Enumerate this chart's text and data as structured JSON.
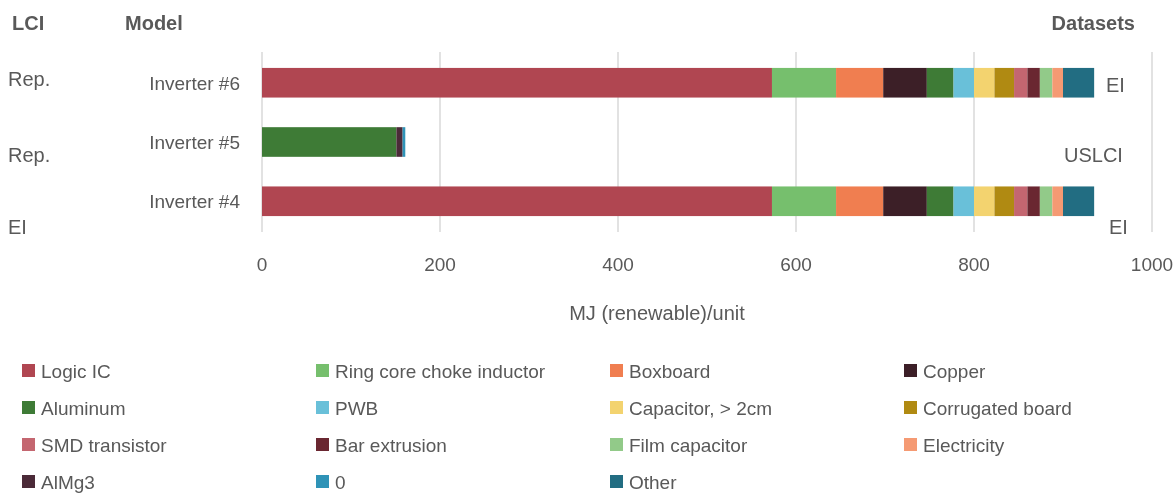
{
  "chart_data": {
    "type": "bar",
    "orientation": "horizontal",
    "stacked": true,
    "categories": [
      "Inverter #6",
      "Inverter #5",
      "Inverter #4"
    ],
    "series": [
      {
        "name": "Logic IC",
        "color": "#b04651",
        "values": [
          573,
          0,
          573
        ]
      },
      {
        "name": "Ring core choke inductor",
        "color": "#76bf6d",
        "values": [
          72,
          0,
          72
        ]
      },
      {
        "name": "Boxboard",
        "color": "#f07e50",
        "values": [
          53,
          0,
          53
        ]
      },
      {
        "name": "Copper",
        "color": "#3c1f27",
        "values": [
          49,
          0,
          49
        ]
      },
      {
        "name": "Aluminum",
        "color": "#3e7b36",
        "values": [
          30,
          151,
          30
        ]
      },
      {
        "name": "PWB",
        "color": "#69c0d9",
        "values": [
          23,
          0,
          23
        ]
      },
      {
        "name": "Capacitor, > 2cm",
        "color": "#f3d36f",
        "values": [
          23,
          0,
          23
        ]
      },
      {
        "name": "Corrugated board",
        "color": "#b08a12",
        "values": [
          22,
          0,
          22
        ]
      },
      {
        "name": "SMD transistor",
        "color": "#c46670",
        "values": [
          15,
          0,
          15
        ]
      },
      {
        "name": "Bar extrusion",
        "color": "#6a2731",
        "values": [
          14,
          0,
          14
        ]
      },
      {
        "name": "Film capacitor",
        "color": "#92ca89",
        "values": [
          14,
          0,
          14
        ]
      },
      {
        "name": "Electricity",
        "color": "#f59a73",
        "values": [
          12,
          0,
          12
        ]
      },
      {
        "name": "AlMg3",
        "color": "#4b2a38",
        "values": [
          0,
          7,
          0
        ]
      },
      {
        "name": "0",
        "color": "#2f93b7",
        "values": [
          0,
          3,
          0
        ]
      },
      {
        "name": "Other",
        "color": "#226d82",
        "values": [
          35,
          0,
          35
        ]
      }
    ],
    "xlim": [
      0,
      1000
    ],
    "xticks": [
      0,
      200,
      400,
      600,
      800,
      1000
    ],
    "xlabel": "MJ (renewable)/unit",
    "grid": "x",
    "legend": "bottom",
    "annotations": [
      "LCI",
      "Model",
      "Datasets",
      "Rep.",
      "Rep.",
      "EI",
      "EI",
      "USLCI",
      "EI"
    ]
  }
}
